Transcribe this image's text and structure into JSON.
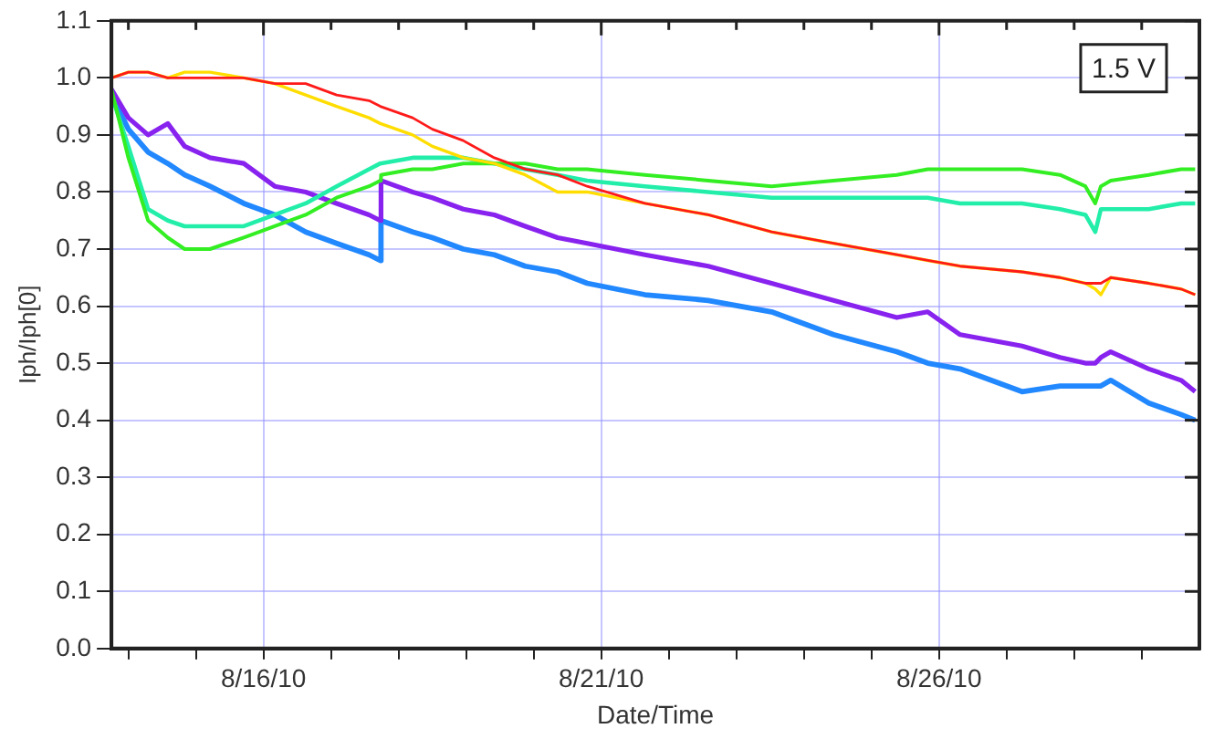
{
  "chart_data": {
    "type": "line",
    "xlabel": "Date/Time",
    "ylabel": "Iph/Iph[0]",
    "x": [
      "--08-13T18:00",
      "--08-14T00:00",
      "--08-14T07:00",
      "--08-14T14:00",
      "--08-14T20:00",
      "--08-15T05:00",
      "--08-15T17:00",
      "--08-16T04:00",
      "--08-16T15:00",
      "--08-17T02:00",
      "--08-17T13:30",
      "--08-17T17:30",
      "--08-17T17:45",
      "--08-18T05:00",
      "--08-18T12:00",
      "--08-18T23:00",
      "--08-19T10:00",
      "--08-19T21:00",
      "--08-20T08:30",
      "--08-20T19:00",
      "--08-21T15:30",
      "--08-22T14:00",
      "--08-23T12:30",
      "--08-24T10:30",
      "--08-25T09:00",
      "--08-25T20:00",
      "--08-26T07:30",
      "--08-27T05:30",
      "--08-27T19:00",
      "--08-28T04:00",
      "--08-28T07:30",
      "--08-28T09:30",
      "--08-28T13:00",
      "--08-29T02:30",
      "--08-29T14:00",
      "--08-29T19:00"
    ],
    "series": [
      {
        "color": "#ff1a1a",
        "values": [
          1.0,
          1.01,
          1.01,
          1.0,
          1.0,
          1.0,
          1.0,
          0.99,
          0.99,
          0.97,
          0.96,
          0.95,
          0.95,
          0.93,
          0.91,
          0.89,
          0.86,
          0.84,
          0.83,
          0.81,
          0.78,
          0.76,
          0.73,
          0.71,
          0.69,
          0.68,
          0.67,
          0.66,
          0.65,
          0.64,
          0.64,
          0.64,
          0.65,
          0.64,
          0.63,
          0.62
        ]
      },
      {
        "color": "#ffdd00",
        "values": [
          1.0,
          1.01,
          1.01,
          1.0,
          1.01,
          1.01,
          1.0,
          0.99,
          0.97,
          0.95,
          0.93,
          0.92,
          0.92,
          0.9,
          0.88,
          0.86,
          0.85,
          0.83,
          0.8,
          0.8,
          0.78,
          0.76,
          0.73,
          0.71,
          0.69,
          0.68,
          0.67,
          0.66,
          0.65,
          0.64,
          0.63,
          0.62,
          0.65,
          0.64,
          0.63,
          0.62
        ]
      },
      {
        "color": "#33ee22",
        "values": [
          0.98,
          0.86,
          0.75,
          0.72,
          0.7,
          0.7,
          0.72,
          0.74,
          0.76,
          0.79,
          0.81,
          0.82,
          0.83,
          0.84,
          0.84,
          0.85,
          0.85,
          0.85,
          0.84,
          0.84,
          0.83,
          0.82,
          0.81,
          0.82,
          0.83,
          0.84,
          0.84,
          0.84,
          0.83,
          0.81,
          0.78,
          0.81,
          0.82,
          0.83,
          0.84,
          0.84
        ]
      },
      {
        "color": "#22eeaa",
        "values": [
          0.97,
          0.88,
          0.77,
          0.75,
          0.74,
          0.74,
          0.74,
          0.76,
          0.78,
          0.81,
          0.84,
          0.85,
          0.85,
          0.86,
          0.86,
          0.86,
          0.85,
          0.84,
          0.83,
          0.82,
          0.81,
          0.8,
          0.79,
          0.79,
          0.79,
          0.79,
          0.78,
          0.78,
          0.77,
          0.76,
          0.73,
          0.77,
          0.77,
          0.77,
          0.78,
          0.78
        ]
      },
      {
        "color": "#8822ee",
        "values": [
          0.98,
          0.93,
          0.9,
          0.92,
          0.88,
          0.86,
          0.85,
          0.81,
          0.8,
          0.78,
          0.76,
          0.75,
          0.82,
          0.8,
          0.79,
          0.77,
          0.76,
          0.74,
          0.72,
          0.71,
          0.69,
          0.67,
          0.64,
          0.61,
          0.58,
          0.59,
          0.55,
          0.53,
          0.51,
          0.5,
          0.5,
          0.51,
          0.52,
          0.49,
          0.47,
          0.45
        ]
      },
      {
        "color": "#2288ff",
        "values": [
          0.97,
          0.91,
          0.87,
          0.85,
          0.83,
          0.81,
          0.78,
          0.76,
          0.73,
          0.71,
          0.69,
          0.68,
          0.75,
          0.73,
          0.72,
          0.7,
          0.69,
          0.67,
          0.66,
          0.64,
          0.62,
          0.61,
          0.59,
          0.55,
          0.52,
          0.5,
          0.49,
          0.45,
          0.46,
          0.46,
          0.46,
          0.46,
          0.47,
          0.43,
          0.41,
          0.4
        ]
      }
    ],
    "xlim": [
      "--08-13T18:00",
      "--08-29T20:30"
    ],
    "xticks": [
      {
        "value": "--08-14",
        "label": null
      },
      {
        "value": "--08-15",
        "label": null
      },
      {
        "value": "--08-16",
        "label": "8/16/10"
      },
      {
        "value": "--08-17",
        "label": null
      },
      {
        "value": "--08-18",
        "label": null
      },
      {
        "value": "--08-19",
        "label": null
      },
      {
        "value": "--08-20",
        "label": null
      },
      {
        "value": "--08-21",
        "label": "8/21/10"
      },
      {
        "value": "--08-22",
        "label": null
      },
      {
        "value": "--08-23",
        "label": null
      },
      {
        "value": "--08-24",
        "label": null
      },
      {
        "value": "--08-25",
        "label": null
      },
      {
        "value": "--08-26",
        "label": "8/26/10"
      },
      {
        "value": "--08-27",
        "label": null
      },
      {
        "value": "--08-28",
        "label": null
      },
      {
        "value": "--08-29",
        "label": null
      }
    ],
    "ylim": [
      0,
      1.1
    ],
    "yticks": [
      {
        "value": 0,
        "label": "0.0"
      },
      0.1,
      0.2,
      0.3,
      0.4,
      0.5,
      0.6,
      0.7,
      0.8,
      0.9,
      {
        "value": 1,
        "label": "1.0"
      },
      1.1
    ],
    "grid": true,
    "legend": false,
    "marker": "none",
    "line_style": "solid",
    "annotations": [
      "1.5 V"
    ]
  }
}
